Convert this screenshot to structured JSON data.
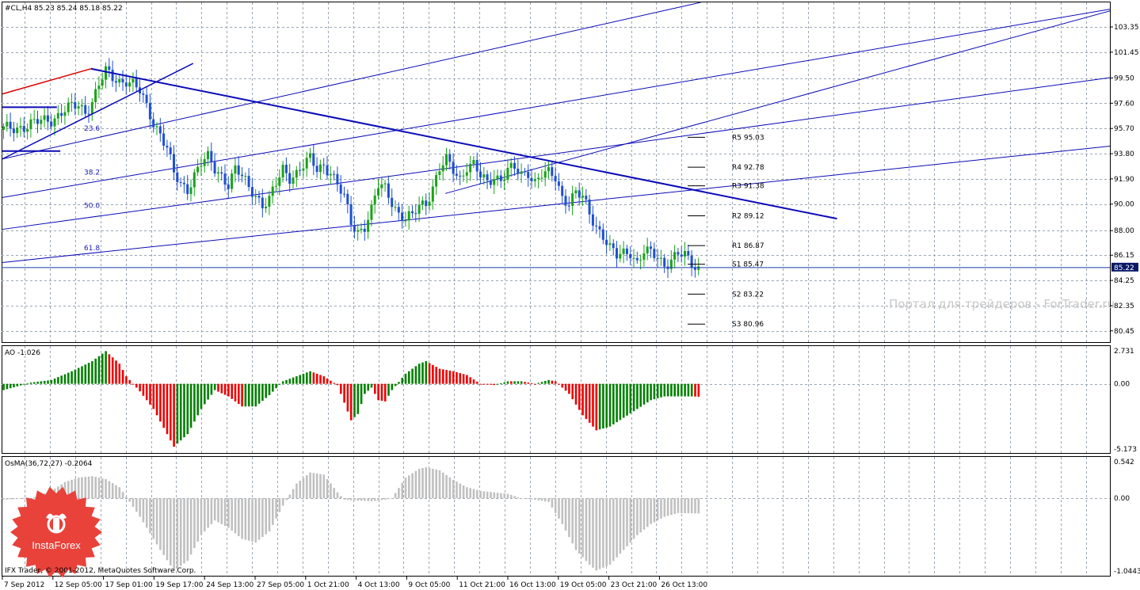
{
  "chart_data": [
    {
      "type": "candlestick",
      "title": "#CL,H4  85.23 85.24 85.18 85.22",
      "ylim": [
        79.6,
        105.2
      ],
      "y_ticks": [
        "103.35",
        "101.45",
        "99.50",
        "97.60",
        "95.70",
        "93.80",
        "91.90",
        "90.00",
        "88.00",
        "86.15",
        "84.25",
        "82.35",
        "80.45"
      ],
      "current_price": "85.22",
      "x_ticks": [
        "7 Sep 2012",
        "12 Sep 05:00",
        "17 Sep 01:00",
        "19 Sep 17:00",
        "24 Sep 13:00",
        "27 Sep 05:00",
        "1 Oct 21:00",
        "4 Oct 13:00",
        "9 Oct 05:00",
        "11 Oct 21:00",
        "16 Oct 13:00",
        "19 Oct 05:00",
        "23 Oct 21:00",
        "26 Oct 13:00"
      ],
      "close_path": [
        [
          0,
          95.6
        ],
        [
          8,
          96.0
        ],
        [
          14,
          96.4
        ],
        [
          18,
          97.1
        ],
        [
          22,
          97.4
        ],
        [
          24,
          97.0
        ],
        [
          26,
          97.8
        ],
        [
          28,
          99.0
        ],
        [
          30,
          99.9
        ],
        [
          32,
          99.5
        ],
        [
          34,
          99.3
        ],
        [
          36,
          99.4
        ],
        [
          38,
          99.0
        ],
        [
          40,
          98.4
        ],
        [
          42,
          97.3
        ],
        [
          44,
          96.2
        ],
        [
          46,
          95.4
        ],
        [
          48,
          94.2
        ],
        [
          50,
          92.2
        ],
        [
          52,
          91.4
        ],
        [
          54,
          91.2
        ],
        [
          56,
          92.3
        ],
        [
          58,
          93.1
        ],
        [
          60,
          93.4
        ],
        [
          62,
          92.6
        ],
        [
          64,
          92.2
        ],
        [
          66,
          91.6
        ],
        [
          68,
          92.6
        ],
        [
          70,
          92.0
        ],
        [
          72,
          91.2
        ],
        [
          74,
          90.8
        ],
        [
          76,
          90.0
        ],
        [
          78,
          90.3
        ],
        [
          80,
          91.4
        ],
        [
          82,
          92.6
        ],
        [
          84,
          92.1
        ],
        [
          86,
          92.4
        ],
        [
          88,
          92.9
        ],
        [
          90,
          93.3
        ],
        [
          92,
          92.6
        ],
        [
          94,
          93.0
        ],
        [
          96,
          92.5
        ],
        [
          98,
          91.4
        ],
        [
          100,
          90.4
        ],
        [
          102,
          88.6
        ],
        [
          104,
          88.0
        ],
        [
          106,
          88.4
        ],
        [
          108,
          89.5
        ],
        [
          110,
          91.3
        ],
        [
          112,
          91.2
        ],
        [
          114,
          90.3
        ],
        [
          116,
          89.3
        ],
        [
          118,
          88.8
        ],
        [
          120,
          89.0
        ],
        [
          122,
          89.9
        ],
        [
          124,
          90.2
        ],
        [
          126,
          91.3
        ],
        [
          128,
          92.6
        ],
        [
          130,
          93.2
        ],
        [
          132,
          92.6
        ],
        [
          134,
          92.0
        ],
        [
          136,
          92.9
        ],
        [
          138,
          92.9
        ],
        [
          140,
          92.0
        ],
        [
          142,
          91.6
        ],
        [
          144,
          92.2
        ],
        [
          146,
          91.9
        ],
        [
          148,
          92.5
        ],
        [
          150,
          92.6
        ],
        [
          152,
          92.2
        ],
        [
          154,
          92.5
        ],
        [
          156,
          91.7
        ],
        [
          158,
          92.2
        ],
        [
          160,
          92.2
        ],
        [
          162,
          92.0
        ],
        [
          164,
          90.6
        ],
        [
          166,
          90.2
        ],
        [
          168,
          90.8
        ],
        [
          170,
          90.4
        ],
        [
          172,
          89.3
        ],
        [
          174,
          88.4
        ],
        [
          176,
          87.7
        ],
        [
          178,
          86.6
        ],
        [
          180,
          86.0
        ],
        [
          182,
          86.3
        ],
        [
          184,
          86.5
        ],
        [
          186,
          85.6
        ],
        [
          188,
          86.4
        ],
        [
          190,
          86.2
        ],
        [
          192,
          86.0
        ],
        [
          194,
          85.5
        ],
        [
          196,
          85.9
        ],
        [
          198,
          86.2
        ],
        [
          200,
          86.0
        ],
        [
          202,
          85.5
        ],
        [
          204,
          85.22
        ]
      ],
      "trend_lines": [
        {
          "name": "main-downtrend",
          "color": "#0b0bb8",
          "from": [
            26,
            100.2
          ],
          "to": [
            245,
            88.9
          ]
        },
        {
          "name": "red-channel-top",
          "color": "#dd0000",
          "from": [
            0,
            98.3
          ],
          "to": [
            26,
            100.2
          ]
        },
        {
          "name": "short-uptrend",
          "color": "#0b0bb8",
          "from": [
            0,
            93.4
          ],
          "to": [
            56,
            100.6
          ]
        }
      ],
      "channel_lines": [
        {
          "from": [
            0,
            85.6
          ],
          "to": [
            330,
            94.5
          ]
        },
        {
          "from": [
            0,
            88.1
          ],
          "to": [
            330,
            99.7
          ]
        },
        {
          "from": [
            0,
            90.5
          ],
          "to": [
            330,
            104.9
          ]
        },
        {
          "from": [
            0,
            93.4
          ],
          "to": [
            205,
            105.2
          ]
        },
        {
          "from": [
            130,
            90.8
          ],
          "to": [
            330,
            104.9
          ]
        }
      ],
      "fib_levels": [
        {
          "label": "23.6",
          "y": 95.7
        },
        {
          "label": "38.2",
          "y": 92.4
        },
        {
          "label": "50.0",
          "y": 89.9
        },
        {
          "label": "61.8",
          "y": 86.7
        }
      ],
      "pivots": [
        {
          "label": "R5 95.03",
          "y": 95.03
        },
        {
          "label": "R4 92.78",
          "y": 92.78
        },
        {
          "label": "R3 91.38",
          "y": 91.38
        },
        {
          "label": "R2 89.12",
          "y": 89.12
        },
        {
          "label": "R1 86.87",
          "y": 86.87
        },
        {
          "label": "S1 85.47",
          "y": 85.47
        },
        {
          "label": "S2 83.22",
          "y": 83.22
        },
        {
          "label": "S3 80.96",
          "y": 80.96
        }
      ]
    },
    {
      "type": "bar",
      "title": "AO -1.026",
      "ylim": [
        -5.5,
        3.0
      ],
      "y_ticks": [
        "2.731",
        "0.00",
        "-5.173"
      ],
      "up_color": "#008000",
      "down_color": "#ee0000",
      "profile": [
        [
          0,
          -0.5
        ],
        [
          8,
          0.1
        ],
        [
          14,
          0.3
        ],
        [
          20,
          1.0
        ],
        [
          26,
          1.8
        ],
        [
          30,
          2.6
        ],
        [
          34,
          1.6
        ],
        [
          36,
          0.6
        ],
        [
          40,
          -0.6
        ],
        [
          44,
          -2.0
        ],
        [
          48,
          -4.0
        ],
        [
          50,
          -5.0
        ],
        [
          54,
          -4.0
        ],
        [
          58,
          -2.0
        ],
        [
          62,
          -0.5
        ],
        [
          66,
          -1.0
        ],
        [
          70,
          -1.8
        ],
        [
          74,
          -1.8
        ],
        [
          78,
          -0.9
        ],
        [
          82,
          0.2
        ],
        [
          86,
          0.6
        ],
        [
          90,
          1.0
        ],
        [
          94,
          0.6
        ],
        [
          98,
          -0.1
        ],
        [
          100,
          -1.5
        ],
        [
          102,
          -2.9
        ],
        [
          104,
          -2.4
        ],
        [
          106,
          -0.8
        ],
        [
          108,
          -0.3
        ],
        [
          110,
          -1.3
        ],
        [
          112,
          -1.4
        ],
        [
          114,
          -0.5
        ],
        [
          118,
          0.8
        ],
        [
          122,
          1.6
        ],
        [
          124,
          1.8
        ],
        [
          128,
          1.2
        ],
        [
          132,
          1.0
        ],
        [
          136,
          0.7
        ],
        [
          140,
          0.0
        ],
        [
          144,
          -0.1
        ],
        [
          148,
          0.2
        ],
        [
          152,
          0.2
        ],
        [
          156,
          0.0
        ],
        [
          160,
          0.3
        ],
        [
          162,
          0.2
        ],
        [
          166,
          -0.8
        ],
        [
          170,
          -2.5
        ],
        [
          174,
          -3.7
        ],
        [
          178,
          -3.4
        ],
        [
          182,
          -2.7
        ],
        [
          186,
          -2.0
        ],
        [
          190,
          -1.3
        ],
        [
          194,
          -1.0
        ],
        [
          198,
          -1.0
        ],
        [
          202,
          -1.0
        ],
        [
          204,
          -1.026
        ]
      ]
    },
    {
      "type": "bar",
      "title": "OsMA(36,72,27) -0.2064",
      "ylim": [
        -1.05,
        0.56
      ],
      "y_ticks": [
        "0.542",
        "0.00",
        "-1.0443"
      ],
      "color": "#c0c0c0",
      "profile": [
        [
          0,
          -0.02
        ],
        [
          8,
          0.0
        ],
        [
          14,
          0.1
        ],
        [
          18,
          0.22
        ],
        [
          22,
          0.28
        ],
        [
          26,
          0.3
        ],
        [
          30,
          0.26
        ],
        [
          34,
          0.15
        ],
        [
          36,
          0.02
        ],
        [
          40,
          -0.25
        ],
        [
          46,
          -0.7
        ],
        [
          50,
          -0.98
        ],
        [
          54,
          -0.85
        ],
        [
          58,
          -0.5
        ],
        [
          62,
          -0.3
        ],
        [
          66,
          -0.4
        ],
        [
          70,
          -0.55
        ],
        [
          74,
          -0.6
        ],
        [
          78,
          -0.45
        ],
        [
          82,
          -0.1
        ],
        [
          86,
          0.2
        ],
        [
          90,
          0.35
        ],
        [
          94,
          0.32
        ],
        [
          98,
          0.08
        ],
        [
          100,
          -0.02
        ],
        [
          104,
          -0.03
        ],
        [
          108,
          -0.04
        ],
        [
          112,
          -0.02
        ],
        [
          114,
          0.0
        ],
        [
          118,
          0.28
        ],
        [
          122,
          0.4
        ],
        [
          124,
          0.42
        ],
        [
          128,
          0.38
        ],
        [
          132,
          0.25
        ],
        [
          136,
          0.15
        ],
        [
          140,
          0.1
        ],
        [
          144,
          0.08
        ],
        [
          148,
          0.06
        ],
        [
          152,
          0.0
        ],
        [
          156,
          -0.02
        ],
        [
          160,
          -0.05
        ],
        [
          164,
          -0.35
        ],
        [
          168,
          -0.7
        ],
        [
          172,
          -0.9
        ],
        [
          174,
          -0.98
        ],
        [
          178,
          -0.9
        ],
        [
          182,
          -0.7
        ],
        [
          186,
          -0.5
        ],
        [
          190,
          -0.35
        ],
        [
          194,
          -0.25
        ],
        [
          198,
          -0.2
        ],
        [
          204,
          -0.2064
        ]
      ]
    }
  ],
  "watermark": "Портал для трейдеров - ForTrader.ru",
  "copyright": "IFX Trader, © 2001-2012, MetaQuotes Software Corp.",
  "badge_text": "InstaForex",
  "colors": {
    "grid": "#9aa6b3",
    "bull": "#1aa21a",
    "bear": "#1f4fd0",
    "trend": "#0b0bb8",
    "trend_red": "#dd0000",
    "badge": "#e8423a"
  }
}
